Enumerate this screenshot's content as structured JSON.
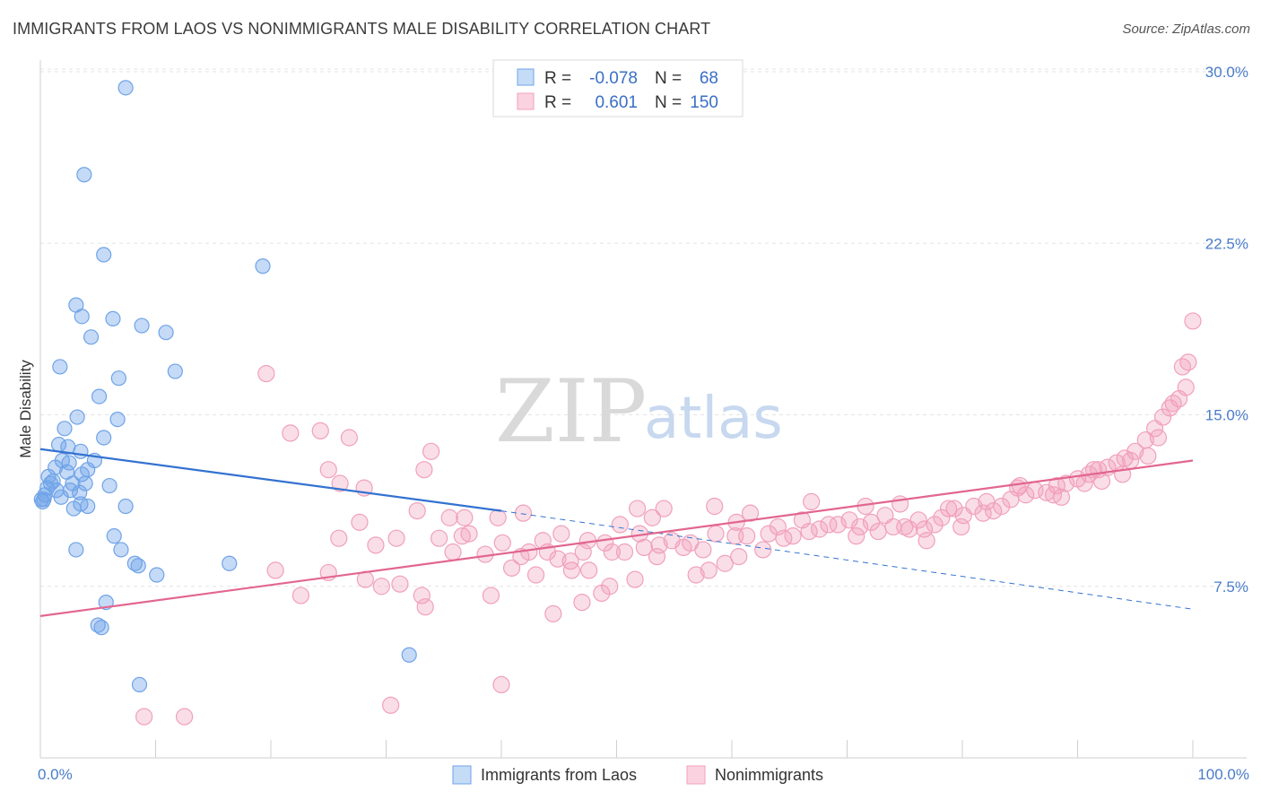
{
  "title": "IMMIGRANTS FROM LAOS VS NONIMMIGRANTS MALE DISABILITY CORRELATION CHART",
  "source": "Source: ZipAtlas.com",
  "watermark": {
    "part1": "ZIP",
    "part2": "atlas"
  },
  "colors": {
    "blue": "#6fa3e8",
    "blue_line": "#3372d0",
    "pink": "#f0a0bb",
    "pink_line": "#e2668f",
    "tick": "#4a7cc9"
  },
  "legend": {
    "rows": [
      {
        "r_label": "R =",
        "r_value": "-0.078",
        "n_label": "N =",
        "n_value": "68"
      },
      {
        "r_label": "R =",
        "r_value": "0.601",
        "n_label": "N =",
        "n_value": "150"
      }
    ]
  },
  "bottom_legend": [
    "Immigrants from Laos",
    "Nonimmigrants"
  ],
  "chart_data": {
    "type": "scatter",
    "title": "IMMIGRANTS FROM LAOS VS NONIMMIGRANTS MALE DISABILITY CORRELATION CHART",
    "xlabel": "",
    "ylabel": "Male Disability",
    "xlim": [
      0,
      100
    ],
    "ylim": [
      0,
      30.5
    ],
    "x_tick_labels": [
      "0.0%",
      "100.0%"
    ],
    "y_ticks": [
      7.5,
      15.0,
      22.5,
      30.0
    ],
    "y_tick_labels": [
      "7.5%",
      "15.0%",
      "22.5%",
      "30.0%"
    ],
    "grid": true,
    "legend_position": "top-center",
    "series": [
      {
        "name": "Immigrants from Laos",
        "r": -0.078,
        "n": 68,
        "trend": {
          "x": [
            0,
            40
          ],
          "y": [
            13.5,
            10.8
          ],
          "dashed_to": [
            100,
            6.5
          ]
        },
        "points": [
          [
            7.4,
            29.3
          ],
          [
            3.8,
            25.5
          ],
          [
            5.5,
            22.0
          ],
          [
            19.3,
            21.5
          ],
          [
            3.1,
            19.8
          ],
          [
            3.6,
            19.3
          ],
          [
            6.3,
            19.2
          ],
          [
            8.8,
            18.9
          ],
          [
            10.9,
            18.6
          ],
          [
            4.4,
            18.4
          ],
          [
            1.7,
            17.1
          ],
          [
            11.7,
            16.9
          ],
          [
            6.8,
            16.6
          ],
          [
            5.1,
            15.8
          ],
          [
            6.7,
            14.8
          ],
          [
            3.2,
            14.9
          ],
          [
            2.1,
            14.4
          ],
          [
            5.5,
            14.0
          ],
          [
            1.6,
            13.7
          ],
          [
            2.4,
            13.6
          ],
          [
            3.5,
            13.4
          ],
          [
            1.9,
            13.0
          ],
          [
            4.7,
            13.0
          ],
          [
            2.5,
            12.9
          ],
          [
            1.3,
            12.7
          ],
          [
            4.1,
            12.6
          ],
          [
            2.3,
            12.5
          ],
          [
            3.6,
            12.4
          ],
          [
            0.7,
            12.3
          ],
          [
            1.1,
            12.1
          ],
          [
            0.9,
            12.0
          ],
          [
            2.8,
            12.0
          ],
          [
            3.9,
            12.0
          ],
          [
            6.0,
            11.9
          ],
          [
            0.6,
            11.8
          ],
          [
            2.6,
            11.7
          ],
          [
            1.4,
            11.7
          ],
          [
            3.4,
            11.6
          ],
          [
            0.4,
            11.5
          ],
          [
            1.8,
            11.4
          ],
          [
            0.3,
            11.3
          ],
          [
            0.2,
            11.2
          ],
          [
            3.5,
            11.1
          ],
          [
            4.1,
            11.0
          ],
          [
            2.9,
            10.9
          ],
          [
            7.4,
            11.0
          ],
          [
            0.1,
            11.3
          ],
          [
            6.4,
            9.7
          ],
          [
            3.1,
            9.1
          ],
          [
            7.0,
            9.1
          ],
          [
            8.2,
            8.5
          ],
          [
            8.5,
            8.4
          ],
          [
            16.4,
            8.5
          ],
          [
            10.1,
            8.0
          ],
          [
            5.7,
            6.8
          ],
          [
            5.0,
            5.8
          ],
          [
            5.3,
            5.7
          ],
          [
            32.0,
            4.5
          ],
          [
            8.6,
            3.2
          ]
        ]
      },
      {
        "name": "Nonimmigrants",
        "r": 0.601,
        "n": 150,
        "trend": {
          "x": [
            0,
            100
          ],
          "y": [
            6.2,
            13.0
          ]
        },
        "points": [
          [
            9.0,
            1.8
          ],
          [
            12.5,
            1.8
          ],
          [
            30.4,
            2.3
          ],
          [
            40.0,
            3.2
          ],
          [
            19.6,
            16.8
          ],
          [
            21.7,
            14.2
          ],
          [
            24.3,
            14.3
          ],
          [
            26.8,
            14.0
          ],
          [
            33.9,
            13.4
          ],
          [
            25.0,
            12.6
          ],
          [
            33.3,
            12.6
          ],
          [
            26.0,
            12.0
          ],
          [
            28.1,
            11.8
          ],
          [
            35.5,
            10.5
          ],
          [
            36.8,
            10.5
          ],
          [
            39.7,
            10.5
          ],
          [
            41.9,
            10.7
          ],
          [
            51.8,
            10.9
          ],
          [
            54.1,
            10.9
          ],
          [
            53.1,
            10.5
          ],
          [
            61.6,
            10.7
          ],
          [
            25.9,
            9.6
          ],
          [
            34.6,
            9.6
          ],
          [
            36.6,
            9.7
          ],
          [
            37.2,
            9.8
          ],
          [
            29.1,
            9.3
          ],
          [
            42.4,
            9.0
          ],
          [
            44.0,
            9.0
          ],
          [
            41.7,
            8.8
          ],
          [
            46.0,
            8.6
          ],
          [
            47.1,
            9.0
          ],
          [
            49.6,
            9.0
          ],
          [
            50.7,
            9.0
          ],
          [
            47.5,
            9.5
          ],
          [
            52.4,
            9.2
          ],
          [
            53.7,
            9.3
          ],
          [
            54.8,
            9.5
          ],
          [
            55.8,
            9.2
          ],
          [
            56.4,
            9.4
          ],
          [
            57.5,
            9.1
          ],
          [
            60.3,
            9.7
          ],
          [
            61.3,
            9.7
          ],
          [
            63.2,
            9.8
          ],
          [
            64.5,
            9.6
          ],
          [
            65.3,
            9.7
          ],
          [
            66.7,
            9.9
          ],
          [
            67.6,
            10.0
          ],
          [
            69.2,
            10.2
          ],
          [
            70.2,
            10.4
          ],
          [
            71.1,
            10.1
          ],
          [
            72.7,
            9.9
          ],
          [
            74.0,
            10.1
          ],
          [
            75.4,
            10.0
          ],
          [
            76.7,
            10.0
          ],
          [
            77.6,
            10.2
          ],
          [
            78.2,
            10.5
          ],
          [
            79.3,
            10.9
          ],
          [
            80.1,
            10.6
          ],
          [
            81.0,
            11.0
          ],
          [
            82.1,
            11.2
          ],
          [
            83.4,
            11.0
          ],
          [
            84.2,
            11.3
          ],
          [
            85.5,
            11.5
          ],
          [
            86.3,
            11.7
          ],
          [
            87.3,
            11.6
          ],
          [
            88.2,
            11.9
          ],
          [
            89.0,
            12.0
          ],
          [
            90.0,
            12.2
          ],
          [
            91.0,
            12.4
          ],
          [
            91.8,
            12.6
          ],
          [
            92.6,
            12.7
          ],
          [
            93.4,
            12.9
          ],
          [
            94.1,
            13.1
          ],
          [
            95.0,
            13.4
          ],
          [
            95.9,
            13.9
          ],
          [
            96.7,
            14.4
          ],
          [
            97.4,
            14.9
          ],
          [
            98.0,
            15.3
          ],
          [
            98.8,
            15.7
          ],
          [
            99.4,
            16.2
          ],
          [
            99.6,
            17.3
          ],
          [
            100.0,
            19.1
          ],
          [
            20.4,
            8.2
          ],
          [
            22.6,
            7.1
          ],
          [
            25.0,
            8.1
          ],
          [
            28.2,
            7.8
          ],
          [
            29.6,
            7.5
          ],
          [
            31.2,
            7.6
          ],
          [
            33.1,
            7.1
          ],
          [
            33.4,
            6.6
          ],
          [
            39.1,
            7.1
          ],
          [
            40.9,
            8.3
          ],
          [
            43.0,
            8.0
          ],
          [
            44.9,
            8.7
          ],
          [
            46.1,
            8.2
          ],
          [
            47.6,
            8.2
          ],
          [
            48.7,
            7.2
          ],
          [
            49.4,
            7.5
          ],
          [
            51.6,
            7.8
          ],
          [
            53.5,
            8.8
          ],
          [
            56.9,
            8.0
          ],
          [
            58.0,
            8.2
          ],
          [
            59.4,
            8.5
          ],
          [
            60.6,
            8.8
          ],
          [
            62.7,
            9.1
          ],
          [
            30.9,
            9.6
          ],
          [
            35.8,
            9.0
          ],
          [
            38.6,
            8.9
          ],
          [
            40.1,
            9.4
          ],
          [
            43.6,
            9.5
          ],
          [
            45.2,
            9.8
          ],
          [
            49.0,
            9.4
          ],
          [
            50.3,
            10.2
          ],
          [
            52.0,
            9.8
          ],
          [
            58.6,
            9.8
          ],
          [
            64.0,
            10.1
          ],
          [
            66.1,
            10.4
          ],
          [
            68.4,
            10.2
          ],
          [
            70.8,
            9.7
          ],
          [
            72.1,
            10.3
          ],
          [
            73.3,
            10.6
          ],
          [
            75.0,
            10.1
          ],
          [
            76.2,
            10.4
          ],
          [
            79.9,
            10.1
          ],
          [
            82.7,
            10.8
          ],
          [
            85.0,
            11.9
          ],
          [
            87.9,
            11.5
          ],
          [
            90.6,
            12.0
          ],
          [
            92.1,
            12.1
          ],
          [
            94.6,
            13.0
          ],
          [
            96.1,
            13.2
          ],
          [
            98.3,
            15.5
          ],
          [
            99.1,
            17.1
          ],
          [
            44.5,
            6.3
          ],
          [
            47.0,
            6.8
          ],
          [
            58.5,
            11.0
          ],
          [
            71.6,
            11.0
          ],
          [
            74.6,
            11.1
          ],
          [
            78.8,
            10.9
          ],
          [
            81.8,
            10.7
          ],
          [
            84.8,
            11.8
          ],
          [
            88.6,
            11.4
          ],
          [
            97.0,
            14.0
          ],
          [
            91.4,
            12.6
          ],
          [
            93.9,
            12.4
          ],
          [
            27.7,
            10.3
          ],
          [
            32.7,
            10.8
          ],
          [
            60.4,
            10.3
          ],
          [
            66.9,
            11.2
          ],
          [
            76.9,
            9.5
          ]
        ]
      }
    ]
  }
}
